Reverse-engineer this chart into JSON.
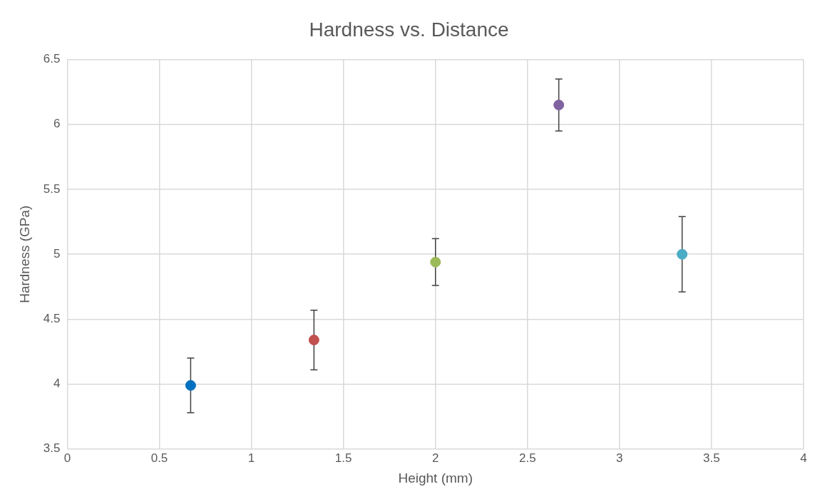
{
  "chart_data": {
    "type": "scatter",
    "title": "Hardness vs. Distance",
    "xlabel": "Height (mm)",
    "ylabel": "Hardness (GPa)",
    "x": [
      0.67,
      1.34,
      2.0,
      2.67,
      3.34
    ],
    "values": [
      3.99,
      4.34,
      4.94,
      6.15,
      5.0
    ],
    "errors": [
      0.21,
      0.23,
      0.18,
      0.2,
      0.29
    ],
    "colors": [
      "#0070c0",
      "#c0504d",
      "#9bbb59",
      "#8064a2",
      "#4bacc6"
    ],
    "xlim": [
      0,
      4
    ],
    "xticks": [
      0,
      0.5,
      1,
      1.5,
      2,
      2.5,
      3,
      3.5,
      4
    ],
    "ylim": [
      3.5,
      6.5
    ],
    "yticks": [
      3.5,
      4,
      4.5,
      5,
      5.5,
      6,
      6.5
    ],
    "grid": true,
    "legend": false,
    "marker": "circle"
  }
}
